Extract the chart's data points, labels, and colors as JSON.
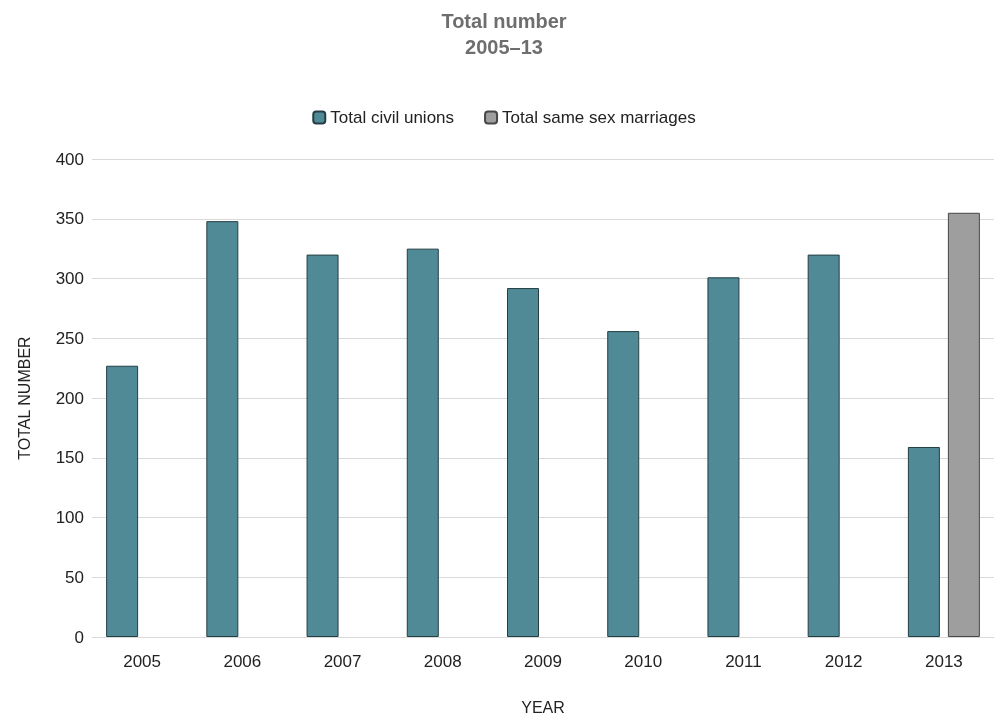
{
  "chart_data": {
    "type": "bar",
    "title": "Total number",
    "subtitle": "2005–13",
    "xlabel": "YEAR",
    "ylabel": "TOTAL NUMBER",
    "categories": [
      "2005",
      "2006",
      "2007",
      "2008",
      "2009",
      "2010",
      "2011",
      "2012",
      "2013"
    ],
    "series": [
      {
        "name": "Total civil unions",
        "color": "#4f8a96",
        "values": [
          227,
          348,
          320,
          325,
          292,
          256,
          301,
          320,
          159
        ]
      },
      {
        "name": "Total same sex marriages",
        "color": "#9e9e9e",
        "values": [
          null,
          null,
          null,
          null,
          null,
          null,
          null,
          null,
          355
        ]
      }
    ],
    "ylim": [
      0,
      400
    ],
    "yticks": [
      0,
      50,
      100,
      150,
      200,
      250,
      300,
      350,
      400
    ],
    "grid": "y",
    "legend": "top"
  }
}
